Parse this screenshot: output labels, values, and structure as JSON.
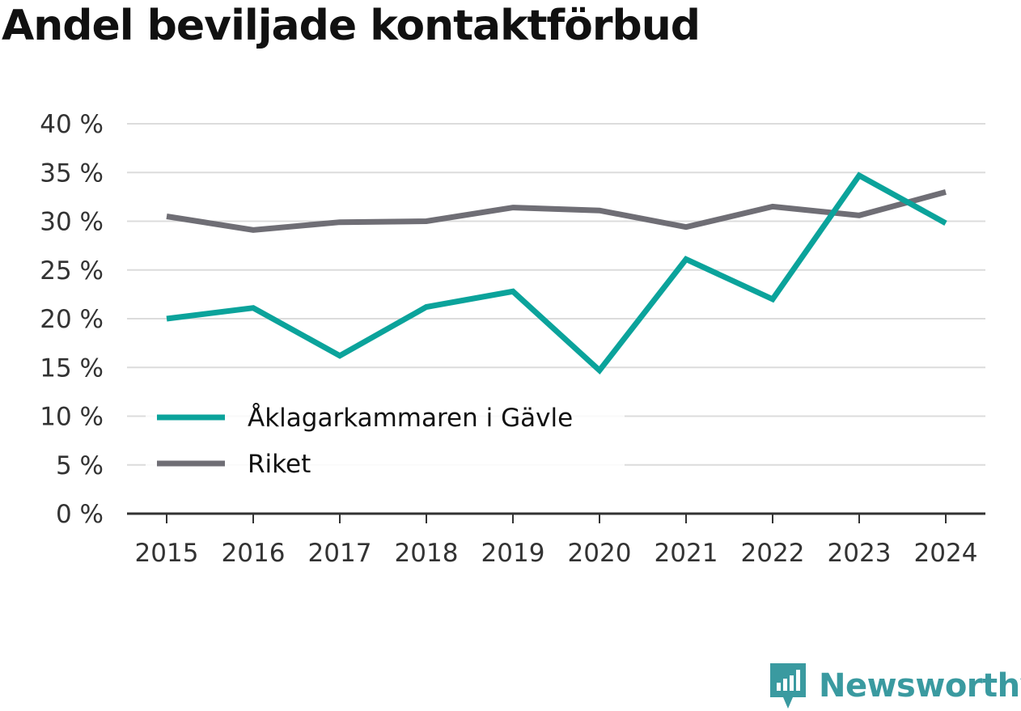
{
  "chart_data": {
    "type": "line",
    "title": "Andel beviljade kontaktförbud",
    "xlabel": "",
    "ylabel": "",
    "x": [
      "2015",
      "2016",
      "2017",
      "2018",
      "2019",
      "2020",
      "2021",
      "2022",
      "2023",
      "2024"
    ],
    "ylim": [
      0,
      40
    ],
    "yticks": [
      0,
      5,
      10,
      15,
      20,
      25,
      30,
      35,
      40
    ],
    "ytick_labels": [
      "0 %",
      "5 %",
      "10 %",
      "15 %",
      "20 %",
      "25 %",
      "30 %",
      "35 %",
      "40 %"
    ],
    "grid": true,
    "legend_position": "lower-left",
    "series": [
      {
        "name": "Åklagarkammaren i Gävle",
        "color": "#0ba39b",
        "values": [
          20.0,
          21.1,
          16.2,
          21.2,
          22.8,
          14.7,
          26.1,
          22.0,
          34.7,
          29.8
        ]
      },
      {
        "name": "Riket",
        "color": "#6f6e75",
        "values": [
          30.5,
          29.1,
          29.9,
          30.0,
          31.4,
          31.1,
          29.4,
          31.5,
          30.6,
          33.0
        ]
      }
    ]
  },
  "brand": {
    "name": "Newsworthy",
    "icon": "newsworthy-logo-icon",
    "color": "#3a9aa0"
  }
}
